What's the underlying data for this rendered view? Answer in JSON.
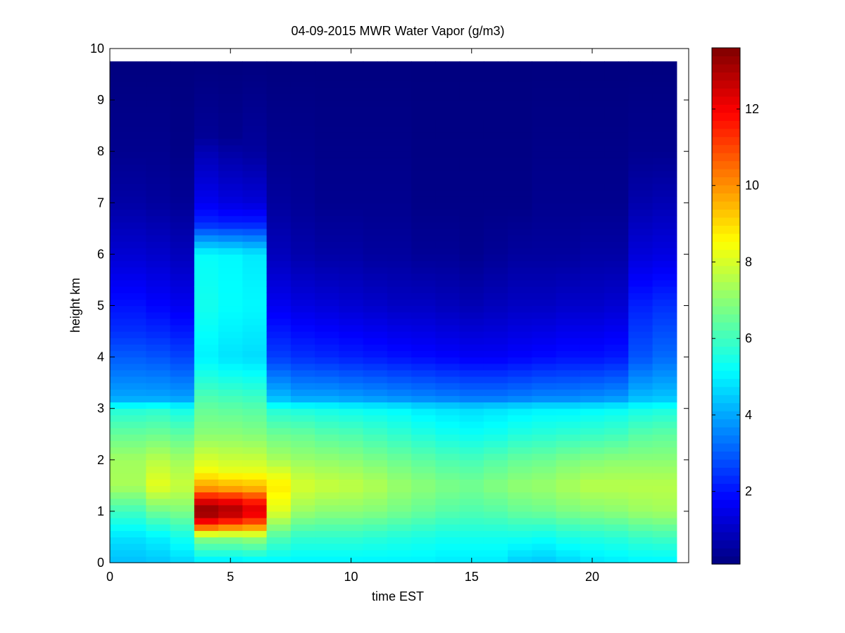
{
  "chart_data": {
    "type": "heatmap",
    "title": "04-09-2015 MWR Water Vapor (g/m3)",
    "xlabel": "time EST",
    "ylabel": "height km",
    "xlim": [
      0,
      24
    ],
    "ylim": [
      0,
      10
    ],
    "x_ticks": [
      0,
      5,
      10,
      15,
      20
    ],
    "y_ticks": [
      0,
      1,
      2,
      3,
      4,
      5,
      6,
      7,
      8,
      9,
      10
    ],
    "colorbar": {
      "colormap": "jet",
      "range": [
        0.1,
        13.6
      ],
      "ticks": [
        2,
        4,
        6,
        8,
        10,
        12
      ]
    },
    "x_edges": [
      0,
      1.5,
      2.5,
      3.5,
      4.5,
      5.5,
      6.5,
      7.5,
      8.5,
      9.5,
      10.5,
      11.5,
      12.5,
      13.5,
      14.5,
      15.5,
      16.5,
      17.5,
      18.5,
      19.5,
      20.5,
      21.5,
      22.5,
      23.5
    ],
    "column_times": [
      0.75,
      2,
      3,
      4,
      5,
      6,
      7,
      8,
      9,
      10,
      11,
      12,
      13,
      14,
      15,
      16,
      17,
      18,
      19,
      20,
      21,
      22,
      23
    ],
    "data_top": 9.75,
    "profiles": [
      [
        [
          0,
          4.3
        ],
        [
          0.5,
          4.8
        ],
        [
          1,
          6.0
        ],
        [
          1.5,
          7.4
        ],
        [
          2,
          7.3
        ],
        [
          2.5,
          6.5
        ],
        [
          3,
          5.6
        ],
        [
          3.2,
          4.0
        ],
        [
          4,
          3.0
        ],
        [
          4.5,
          2.4
        ],
        [
          5,
          2.0
        ],
        [
          6,
          1.2
        ],
        [
          7,
          0.6
        ],
        [
          8,
          0.3
        ],
        [
          9.75,
          0.1
        ]
      ],
      [
        [
          0,
          4.4
        ],
        [
          0.5,
          5.0
        ],
        [
          1,
          6.6
        ],
        [
          1.5,
          8.2
        ],
        [
          2,
          7.6
        ],
        [
          2.5,
          6.6
        ],
        [
          3,
          5.7
        ],
        [
          3.2,
          4.0
        ],
        [
          4,
          2.9
        ],
        [
          4.5,
          2.3
        ],
        [
          5,
          1.8
        ],
        [
          6,
          1.1
        ],
        [
          7,
          0.5
        ],
        [
          8,
          0.3
        ],
        [
          9.75,
          0.1
        ]
      ],
      [
        [
          0,
          4.6
        ],
        [
          0.5,
          5.4
        ],
        [
          1,
          6.8
        ],
        [
          1.5,
          7.8
        ],
        [
          2,
          7.3
        ],
        [
          2.5,
          6.4
        ],
        [
          3,
          5.4
        ],
        [
          3.2,
          3.9
        ],
        [
          4,
          2.7
        ],
        [
          4.5,
          2.1
        ],
        [
          5,
          1.6
        ],
        [
          6,
          0.9
        ],
        [
          7,
          0.4
        ],
        [
          8,
          0.2
        ],
        [
          9.75,
          0.1
        ]
      ],
      [
        [
          0,
          4.8
        ],
        [
          0.5,
          7.0
        ],
        [
          0.75,
          11.5
        ],
        [
          1,
          13.6
        ],
        [
          1.25,
          12.0
        ],
        [
          1.4,
          10.2
        ],
        [
          1.8,
          8.4
        ],
        [
          2.5,
          7.0
        ],
        [
          3,
          6.5
        ],
        [
          4,
          5.0
        ],
        [
          5,
          5.4
        ],
        [
          6,
          5.2
        ],
        [
          6.6,
          2.3
        ],
        [
          7,
          1.6
        ],
        [
          8,
          0.8
        ],
        [
          8.3,
          0.4
        ],
        [
          9.75,
          0.1
        ]
      ],
      [
        [
          0,
          4.8
        ],
        [
          0.5,
          7.0
        ],
        [
          0.75,
          11.0
        ],
        [
          1,
          13.2
        ],
        [
          1.25,
          11.8
        ],
        [
          1.4,
          10.0
        ],
        [
          1.8,
          8.2
        ],
        [
          2.5,
          7.0
        ],
        [
          3,
          6.4
        ],
        [
          4,
          4.8
        ],
        [
          5,
          5.2
        ],
        [
          6,
          5.1
        ],
        [
          6.6,
          2.2
        ],
        [
          7,
          1.4
        ],
        [
          8,
          0.6
        ],
        [
          8.3,
          0.3
        ],
        [
          9.75,
          0.1
        ]
      ],
      [
        [
          0,
          4.9
        ],
        [
          0.5,
          7.2
        ],
        [
          0.75,
          10.6
        ],
        [
          1,
          12.5
        ],
        [
          1.25,
          11.3
        ],
        [
          1.4,
          9.8
        ],
        [
          1.8,
          8.2
        ],
        [
          2.5,
          6.9
        ],
        [
          3,
          6.3
        ],
        [
          4,
          4.7
        ],
        [
          5,
          5.1
        ],
        [
          6,
          4.9
        ],
        [
          6.6,
          2.2
        ],
        [
          7,
          1.3
        ],
        [
          8,
          0.5
        ],
        [
          9.75,
          0.1
        ]
      ],
      [
        [
          0,
          5.0
        ],
        [
          0.5,
          6.2
        ],
        [
          1,
          8.1
        ],
        [
          1.5,
          8.8
        ],
        [
          2,
          7.4
        ],
        [
          2.5,
          6.6
        ],
        [
          3,
          5.6
        ],
        [
          3.2,
          4.3
        ],
        [
          4,
          2.6
        ],
        [
          5,
          1.6
        ],
        [
          6,
          0.9
        ],
        [
          7,
          0.5
        ],
        [
          8,
          0.3
        ],
        [
          9.75,
          0.1
        ]
      ],
      [
        [
          0,
          5.0
        ],
        [
          0.5,
          5.8
        ],
        [
          1,
          7.2
        ],
        [
          1.5,
          8.0
        ],
        [
          2,
          7.2
        ],
        [
          2.5,
          6.5
        ],
        [
          3,
          5.5
        ],
        [
          3.2,
          4.0
        ],
        [
          4,
          2.4
        ],
        [
          5,
          1.4
        ],
        [
          6,
          0.7
        ],
        [
          7,
          0.4
        ],
        [
          9.75,
          0.1
        ]
      ],
      [
        [
          0,
          5.0
        ],
        [
          0.5,
          5.8
        ],
        [
          1,
          7.0
        ],
        [
          1.5,
          7.8
        ],
        [
          2,
          7.1
        ],
        [
          2.5,
          6.3
        ],
        [
          3,
          5.4
        ],
        [
          3.2,
          4.0
        ],
        [
          4,
          2.3
        ],
        [
          5,
          1.3
        ],
        [
          6,
          0.6
        ],
        [
          7,
          0.3
        ],
        [
          9.75,
          0.1
        ]
      ],
      [
        [
          0,
          5.0
        ],
        [
          0.5,
          5.8
        ],
        [
          1,
          7.0
        ],
        [
          1.5,
          7.7
        ],
        [
          2,
          7.0
        ],
        [
          2.5,
          6.2
        ],
        [
          3,
          5.3
        ],
        [
          3.2,
          3.9
        ],
        [
          4,
          2.2
        ],
        [
          5,
          1.2
        ],
        [
          6,
          0.6
        ],
        [
          7,
          0.3
        ],
        [
          9.75,
          0.1
        ]
      ],
      [
        [
          0,
          5.0
        ],
        [
          0.5,
          5.7
        ],
        [
          1,
          6.9
        ],
        [
          1.5,
          7.5
        ],
        [
          2,
          6.8
        ],
        [
          2.5,
          6.0
        ],
        [
          3,
          5.2
        ],
        [
          3.2,
          3.8
        ],
        [
          4,
          2.1
        ],
        [
          5,
          1.1
        ],
        [
          6,
          0.5
        ],
        [
          7,
          0.3
        ],
        [
          9.75,
          0.1
        ]
      ],
      [
        [
          0,
          5.0
        ],
        [
          0.5,
          5.6
        ],
        [
          1,
          6.7
        ],
        [
          1.5,
          7.2
        ],
        [
          2,
          6.6
        ],
        [
          2.5,
          5.8
        ],
        [
          3,
          5.1
        ],
        [
          3.2,
          3.7
        ],
        [
          4,
          2.0
        ],
        [
          5,
          1.0
        ],
        [
          6,
          0.5
        ],
        [
          7,
          0.3
        ],
        [
          9.75,
          0.1
        ]
      ],
      [
        [
          0,
          5.0
        ],
        [
          0.5,
          5.5
        ],
        [
          1,
          6.5
        ],
        [
          1.5,
          7.0
        ],
        [
          2,
          6.4
        ],
        [
          2.5,
          5.6
        ],
        [
          3,
          4.9
        ],
        [
          3.2,
          3.6
        ],
        [
          4,
          1.9
        ],
        [
          5,
          1.0
        ],
        [
          6,
          0.4
        ],
        [
          7,
          0.2
        ],
        [
          9.75,
          0.1
        ]
      ],
      [
        [
          0,
          4.9
        ],
        [
          0.5,
          5.4
        ],
        [
          1,
          6.3
        ],
        [
          1.5,
          6.8
        ],
        [
          2,
          6.2
        ],
        [
          2.5,
          5.4
        ],
        [
          3,
          4.8
        ],
        [
          3.2,
          3.5
        ],
        [
          4,
          1.8
        ],
        [
          5,
          0.9
        ],
        [
          6,
          0.4
        ],
        [
          7,
          0.2
        ],
        [
          9.75,
          0.1
        ]
      ],
      [
        [
          0,
          4.9
        ],
        [
          0.5,
          5.4
        ],
        [
          1,
          6.2
        ],
        [
          1.5,
          6.7
        ],
        [
          2,
          6.1
        ],
        [
          2.5,
          5.3
        ],
        [
          3,
          4.7
        ],
        [
          3.2,
          3.4
        ],
        [
          4,
          1.7
        ],
        [
          5,
          0.8
        ],
        [
          6,
          0.3
        ],
        [
          7,
          0.2
        ],
        [
          9.75,
          0.1
        ]
      ],
      [
        [
          0,
          4.9
        ],
        [
          0.5,
          5.4
        ],
        [
          1,
          6.3
        ],
        [
          1.5,
          6.9
        ],
        [
          2,
          6.3
        ],
        [
          2.5,
          5.4
        ],
        [
          3,
          4.8
        ],
        [
          3.2,
          3.4
        ],
        [
          4,
          1.7
        ],
        [
          5,
          0.9
        ],
        [
          6,
          0.4
        ],
        [
          7,
          0.2
        ],
        [
          9.75,
          0.1
        ]
      ],
      [
        [
          0,
          4.5
        ],
        [
          0.5,
          5.4
        ],
        [
          1,
          6.5
        ],
        [
          1.5,
          7.1
        ],
        [
          2,
          6.5
        ],
        [
          2.5,
          5.6
        ],
        [
          3,
          4.9
        ],
        [
          3.2,
          3.5
        ],
        [
          4,
          1.8
        ],
        [
          5,
          1.0
        ],
        [
          6,
          0.5
        ],
        [
          7,
          0.2
        ],
        [
          9.75,
          0.1
        ]
      ],
      [
        [
          0,
          4.4
        ],
        [
          0.5,
          5.3
        ],
        [
          1,
          6.6
        ],
        [
          1.5,
          7.2
        ],
        [
          2,
          6.6
        ],
        [
          2.5,
          5.7
        ],
        [
          3,
          5.0
        ],
        [
          3.2,
          3.6
        ],
        [
          4,
          1.9
        ],
        [
          5,
          1.0
        ],
        [
          6,
          0.5
        ],
        [
          7,
          0.3
        ],
        [
          9.75,
          0.1
        ]
      ],
      [
        [
          0,
          4.6
        ],
        [
          0.5,
          5.5
        ],
        [
          1,
          6.8
        ],
        [
          1.5,
          7.4
        ],
        [
          2,
          6.8
        ],
        [
          2.5,
          5.8
        ],
        [
          3,
          5.0
        ],
        [
          3.2,
          3.6
        ],
        [
          4,
          2.0
        ],
        [
          5,
          1.1
        ],
        [
          6,
          0.5
        ],
        [
          7,
          0.3
        ],
        [
          9.75,
          0.1
        ]
      ],
      [
        [
          0,
          4.8
        ],
        [
          0.5,
          5.6
        ],
        [
          1,
          6.9
        ],
        [
          1.5,
          7.6
        ],
        [
          2,
          6.9
        ],
        [
          2.5,
          5.9
        ],
        [
          3,
          5.1
        ],
        [
          3.2,
          3.7
        ],
        [
          4,
          2.0
        ],
        [
          5,
          1.1
        ],
        [
          6,
          0.6
        ],
        [
          7,
          0.3
        ],
        [
          9.75,
          0.1
        ]
      ],
      [
        [
          0,
          4.9
        ],
        [
          0.5,
          5.7
        ],
        [
          1,
          7.0
        ],
        [
          1.5,
          7.6
        ],
        [
          2,
          7.0
        ],
        [
          2.5,
          6.0
        ],
        [
          3,
          5.2
        ],
        [
          3.2,
          3.8
        ],
        [
          4,
          2.1
        ],
        [
          5,
          1.2
        ],
        [
          6,
          0.6
        ],
        [
          7,
          0.3
        ],
        [
          9.75,
          0.1
        ]
      ],
      [
        [
          0,
          5.0
        ],
        [
          0.5,
          5.9
        ],
        [
          1,
          7.2
        ],
        [
          1.5,
          7.6
        ],
        [
          2,
          7.0
        ],
        [
          2.5,
          6.3
        ],
        [
          3,
          5.4
        ],
        [
          3.2,
          4.3
        ],
        [
          4,
          2.9
        ],
        [
          5,
          2.2
        ],
        [
          6,
          1.3
        ],
        [
          7,
          0.7
        ],
        [
          8,
          0.3
        ],
        [
          9.75,
          0.1
        ]
      ],
      [
        [
          0,
          5.0
        ],
        [
          0.5,
          6.0
        ],
        [
          1,
          7.3
        ],
        [
          1.5,
          7.6
        ],
        [
          2,
          7.0
        ],
        [
          2.5,
          6.4
        ],
        [
          3,
          5.5
        ],
        [
          3.2,
          4.4
        ],
        [
          4,
          3.2
        ],
        [
          5,
          2.4
        ],
        [
          6,
          1.4
        ],
        [
          7,
          0.8
        ],
        [
          8,
          0.3
        ],
        [
          9.75,
          0.1
        ]
      ]
    ]
  }
}
